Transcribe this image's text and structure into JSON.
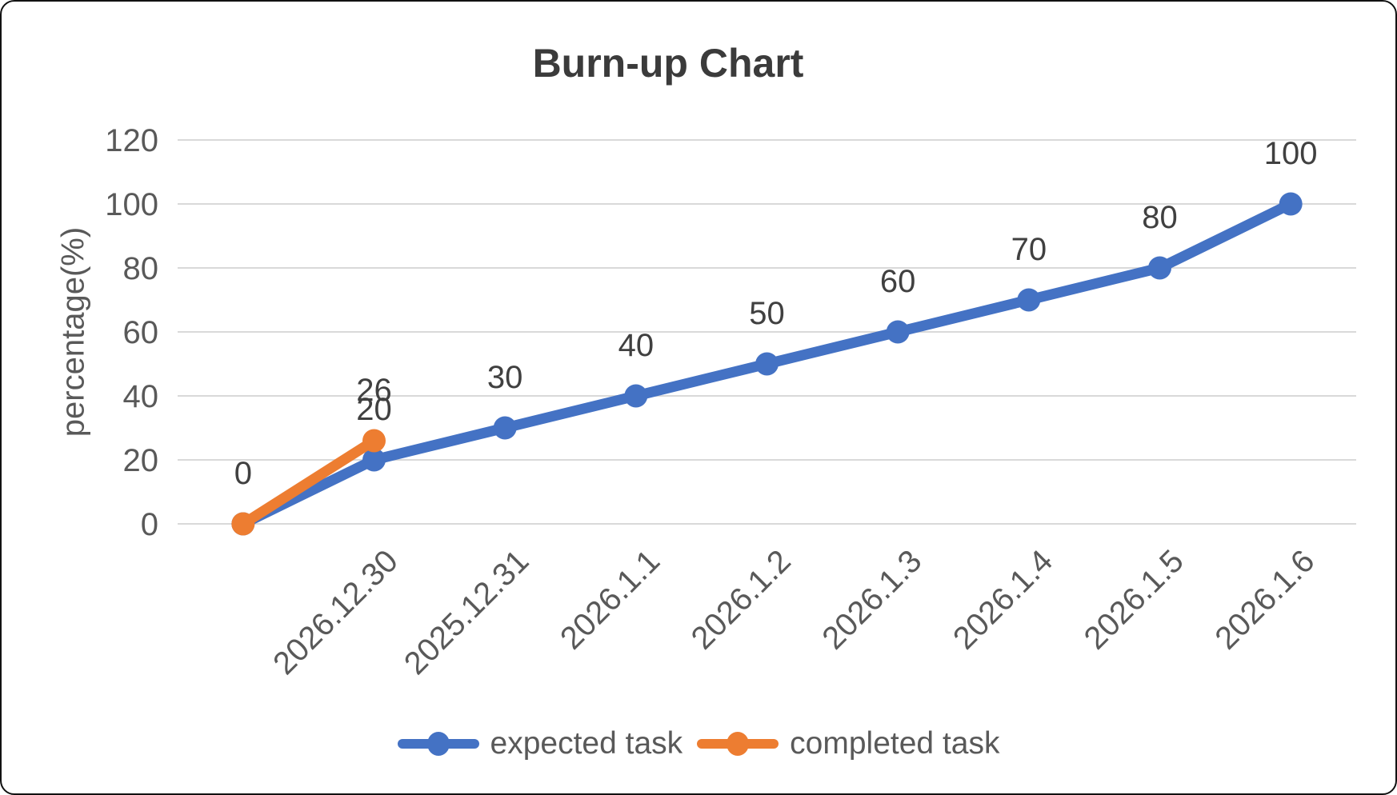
{
  "window": {
    "background": "#ffffff",
    "border_color": "#111111"
  },
  "chart_data": {
    "type": "line",
    "title": "Burn-up Chart",
    "xlabel": "",
    "ylabel": "percentage(%)",
    "ylim": [
      0,
      120
    ],
    "ytick_step": 20,
    "yticks": [
      0,
      20,
      40,
      60,
      80,
      100,
      120
    ],
    "grid": true,
    "legend_position": "bottom",
    "categories": [
      "",
      "2026.12.30",
      "2025.12.31",
      "2026.1.1",
      "2026.1.2",
      "2026.1.3",
      "2026.1.4",
      "2026.1.5",
      "2026.1.6"
    ],
    "series": [
      {
        "name": "expected task",
        "color": "#4472C4",
        "values": [
          0,
          20,
          30,
          40,
          50,
          60,
          70,
          80,
          100
        ],
        "data_labels": [
          "0",
          "20",
          "30",
          "40",
          "50",
          "60",
          "70",
          "80",
          "100"
        ]
      },
      {
        "name": "completed task",
        "color": "#ED7D31",
        "values": [
          0,
          26
        ],
        "data_labels": [
          "",
          "26"
        ]
      }
    ],
    "colors": {
      "gridline": "#D9D9D9",
      "tick_text": "#595959",
      "data_label_text": "#404040",
      "title_text": "#3b3b3b",
      "legend_text": "#595959"
    }
  }
}
